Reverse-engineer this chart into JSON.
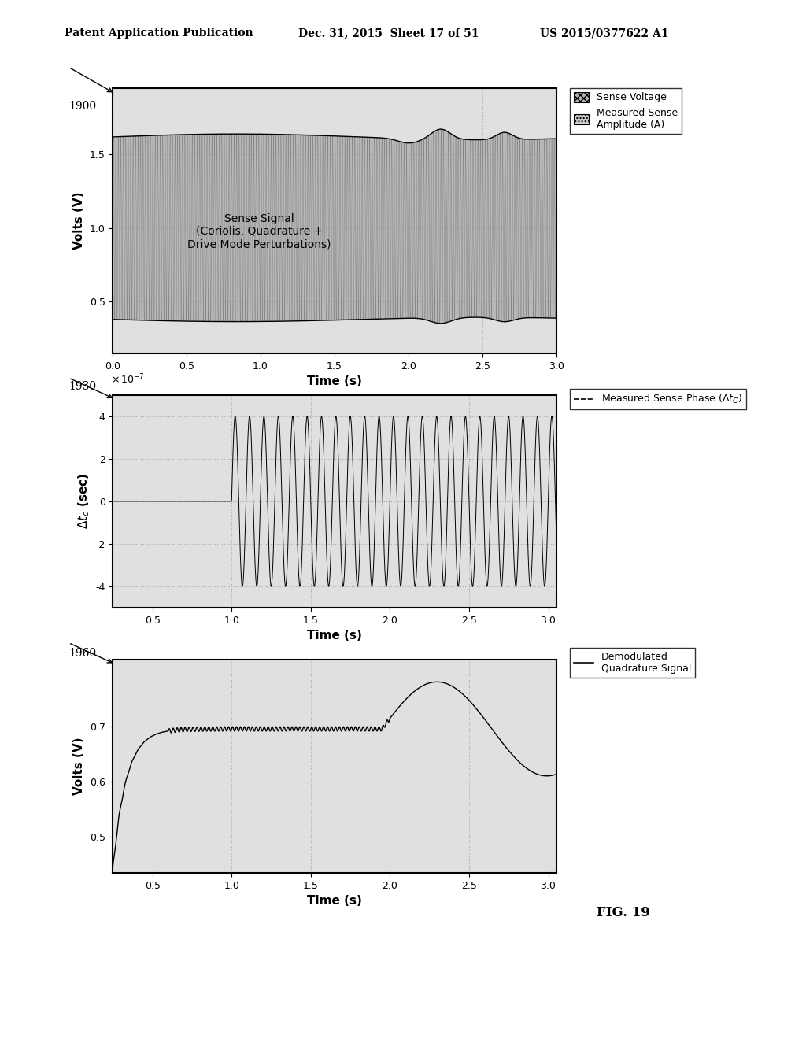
{
  "header_left": "Patent Application Publication",
  "header_mid": "Dec. 31, 2015  Sheet 17 of 51",
  "header_right": "US 2015/0377622 A1",
  "fig_label": "FIG. 19",
  "plot1": {
    "label": "1900",
    "xlabel": "Time (s)",
    "ylabel": "Volts (V)",
    "xlim": [
      0,
      3
    ],
    "ylim": [
      0.15,
      1.95
    ],
    "yticks": [
      0.5,
      1.0,
      1.5
    ],
    "xticks": [
      0,
      0.5,
      1,
      1.5,
      2,
      2.5,
      3
    ],
    "legend1": "Sense Voltage",
    "legend2": "Measured Sense\nAmplitude (A)",
    "text_inside": "Sense Signal\n(Coriolis, Quadrature +\nDrive Mode Perturbations)"
  },
  "plot2": {
    "label": "1930",
    "xlabel": "Time (s)",
    "ylabel": "dt_c (sec)",
    "xlim": [
      0.25,
      3.05
    ],
    "ylim": [
      -5e-07,
      5e-07
    ],
    "yticks": [
      -4e-07,
      -2e-07,
      0,
      2e-07,
      4e-07
    ],
    "ytick_labels": [
      "-4",
      "-2",
      "0",
      "2",
      "4"
    ],
    "xticks": [
      0.5,
      1,
      1.5,
      2,
      2.5,
      3
    ],
    "legend": "Measured Sense\nPhase (Δt_C)"
  },
  "plot3": {
    "label": "1960",
    "xlabel": "Time (s)",
    "ylabel": "Volts (V)",
    "xlim": [
      0.25,
      3.05
    ],
    "ylim": [
      0.435,
      0.82
    ],
    "yticks": [
      0.5,
      0.6,
      0.7
    ],
    "xticks": [
      0.5,
      1,
      1.5,
      2,
      2.5,
      3
    ],
    "legend": "Demodulated\nQuadrature Signal"
  },
  "bg_color": "#ffffff",
  "plot_bg": "#e0e0e0",
  "grid_color": "#aaaaaa",
  "line_color": "#000000"
}
